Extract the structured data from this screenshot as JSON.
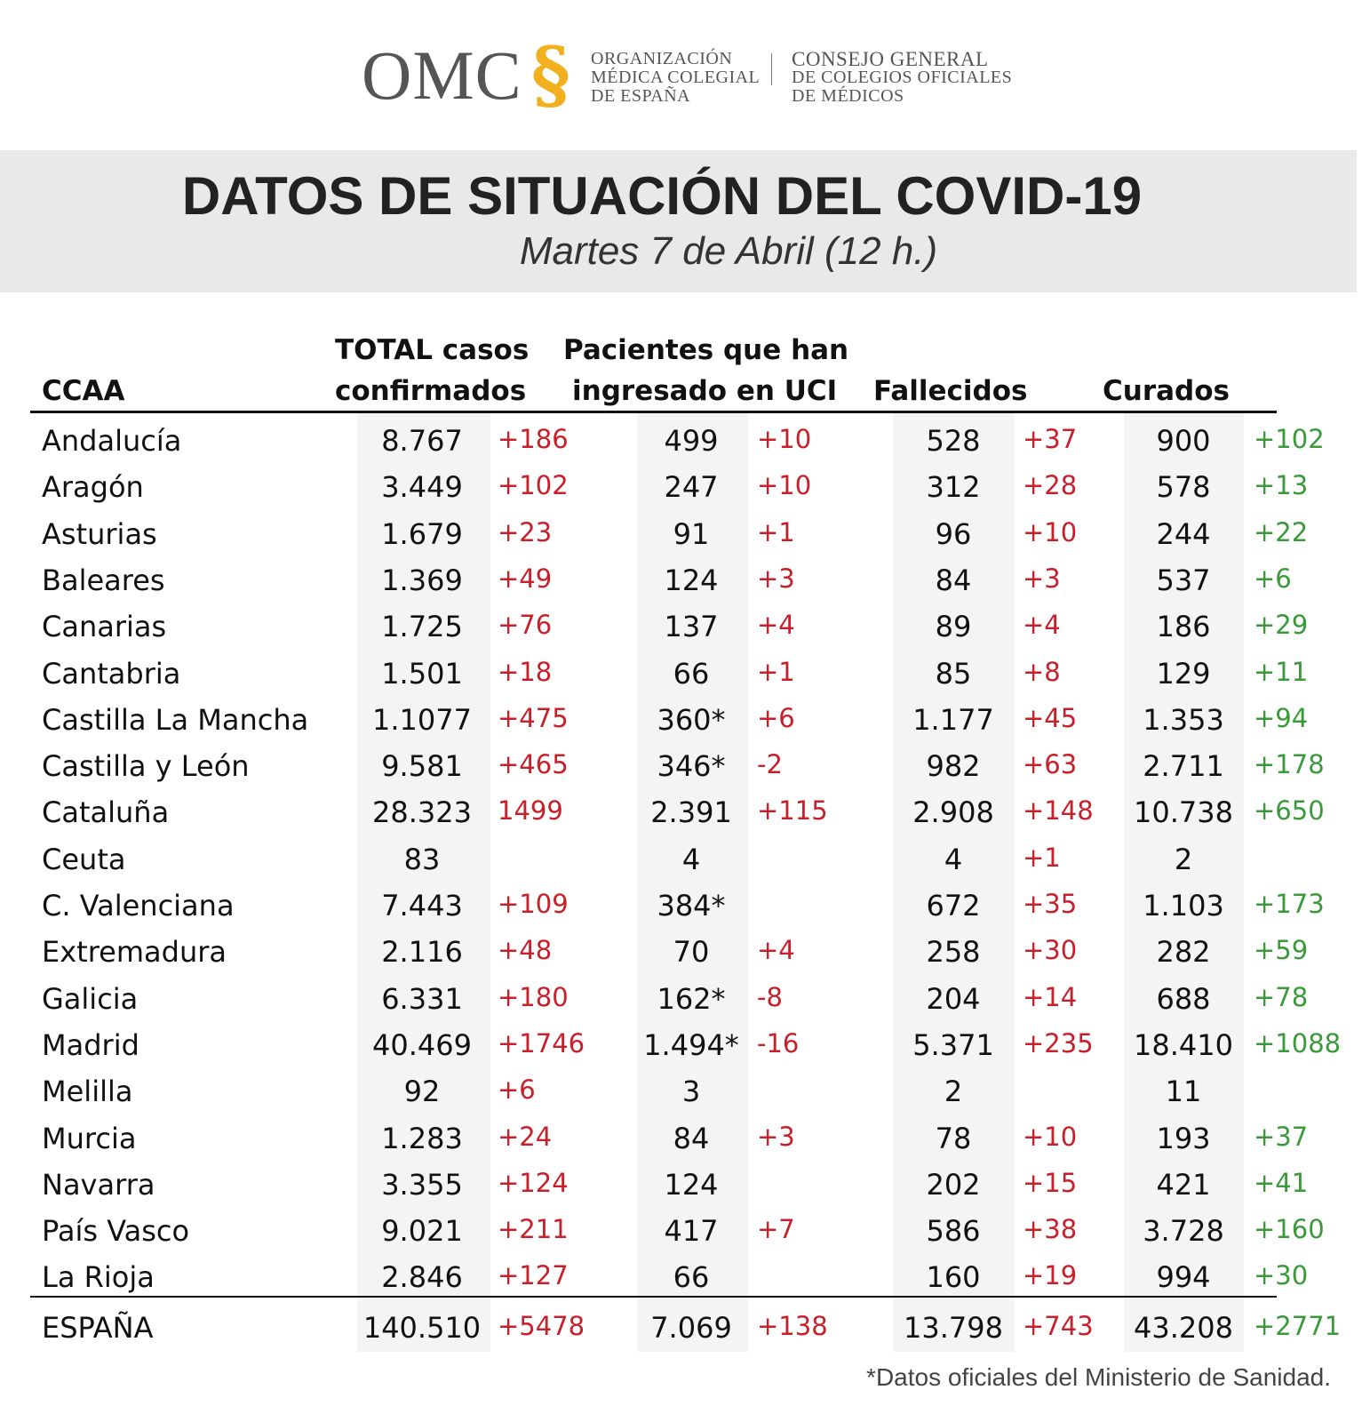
{
  "logo": {
    "omc": "OMC",
    "org_lines": [
      "ORGANIZACIÓN",
      "MÉDICA COLEGIAL",
      "DE ESPAÑA"
    ],
    "consejo_lines": [
      "CONSEJO GENERAL",
      "DE COLEGIOS OFICIALES",
      "DE MÉDICOS"
    ],
    "accent_color": "#f2b01e"
  },
  "header": {
    "title": "DATOS DE SITUACIÓN DEL COVID-19",
    "subtitle": "Martes 7 de Abril (12 h.)"
  },
  "columns": {
    "ccaa": "CCAA",
    "total_1": "TOTAL casos",
    "total_2": "confirmados",
    "uci_1": "Pacientes que han",
    "uci_2": "ingresado en UCI",
    "fallecidos": "Fallecidos",
    "curados": "Curados"
  },
  "colors": {
    "increase_red": "#c8202b",
    "cured_green": "#3a9a3a"
  },
  "rows": [
    [
      "Andalucía",
      "8.767",
      "+186",
      "499",
      "+10",
      "528",
      "+37",
      "900",
      "+102"
    ],
    [
      "Aragón",
      "3.449",
      "+102",
      "247",
      "+10",
      "312",
      "+28",
      "578",
      "+13"
    ],
    [
      "Asturias",
      "1.679",
      "+23",
      "91",
      "+1",
      "96",
      "+10",
      "244",
      "+22"
    ],
    [
      "Baleares",
      "1.369",
      "+49",
      "124",
      "+3",
      "84",
      "+3",
      "537",
      "+6"
    ],
    [
      "Canarias",
      "1.725",
      "+76",
      "137",
      "+4",
      "89",
      "+4",
      "186",
      "+29"
    ],
    [
      "Cantabria",
      "1.501",
      "+18",
      "66",
      "+1",
      "85",
      "+8",
      "129",
      "+11"
    ],
    [
      "Castilla La Mancha",
      "1.1077",
      "+475",
      "360*",
      "+6",
      "1.177",
      "+45",
      "1.353",
      "+94"
    ],
    [
      "Castilla y León",
      "9.581",
      "+465",
      "346*",
      "-2",
      "982",
      "+63",
      "2.711",
      "+178"
    ],
    [
      "Cataluña",
      "28.323",
      "1499",
      "2.391",
      "+115",
      "2.908",
      "+148",
      "10.738",
      "+650"
    ],
    [
      "Ceuta",
      "83",
      "",
      "4",
      "",
      "4",
      "+1",
      "2",
      ""
    ],
    [
      "C. Valenciana",
      "7.443",
      "+109",
      "384*",
      "",
      "672",
      "+35",
      "1.103",
      "+173"
    ],
    [
      "Extremadura",
      "2.116",
      "+48",
      "70",
      "+4",
      "258",
      "+30",
      "282",
      "+59"
    ],
    [
      "Galicia",
      "6.331",
      "+180",
      "162*",
      "-8",
      "204",
      "+14",
      "688",
      "+78"
    ],
    [
      "Madrid",
      "40.469",
      "+1746",
      "1.494*",
      "-16",
      "5.371",
      "+235",
      "18.410",
      "+1088"
    ],
    [
      "Melilla",
      "92",
      "+6",
      "3",
      "",
      "2",
      "",
      "11",
      ""
    ],
    [
      "Murcia",
      "1.283",
      "+24",
      "84",
      "+3",
      "78",
      "+10",
      "193",
      "+37"
    ],
    [
      "Navarra",
      "3.355",
      "+124",
      "124",
      "",
      "202",
      "+15",
      "421",
      "+41"
    ],
    [
      "País Vasco",
      "9.021",
      "+211",
      "417",
      "+7",
      "586",
      "+38",
      "3.728",
      "+160"
    ],
    [
      "La Rioja",
      "2.846",
      "+127",
      "66",
      "",
      "160",
      "+19",
      "994",
      "+30"
    ]
  ],
  "total": [
    "ESPAÑA",
    "140.510",
    "+5478",
    "7.069",
    "+138",
    "13.798",
    "+743",
    "43.208",
    "+2771"
  ],
  "footnote": "*Datos oficiales del Ministerio de Sanidad."
}
